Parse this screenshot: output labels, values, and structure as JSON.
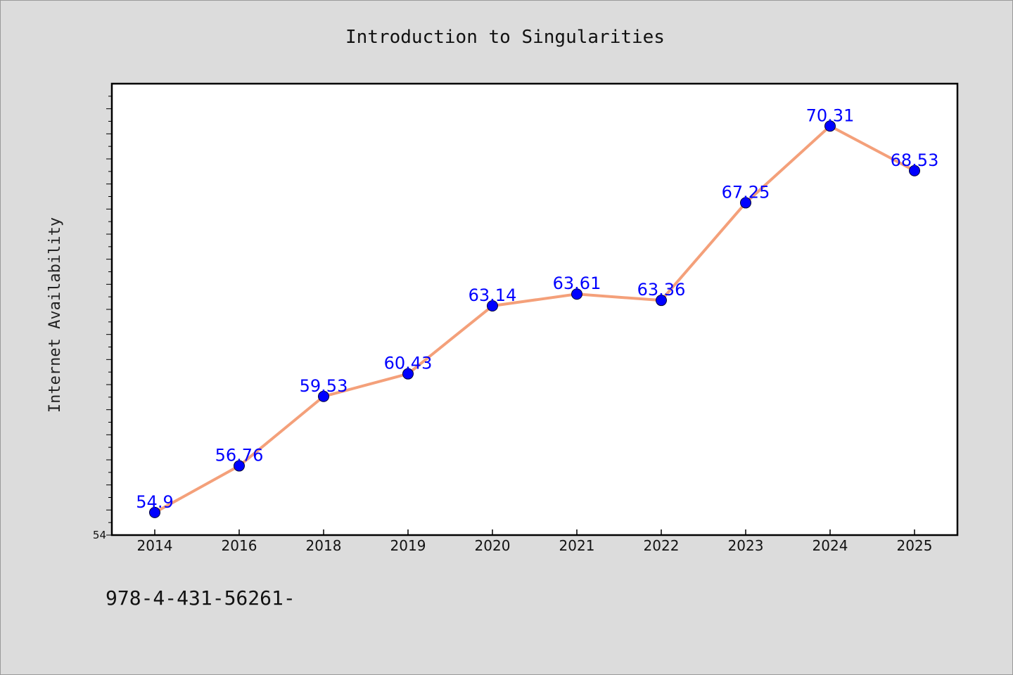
{
  "chart_data": {
    "type": "line",
    "title": "Introduction to Singularities",
    "xlabel": "",
    "ylabel": "Internet Availability",
    "categories": [
      "2014",
      "2016",
      "2018",
      "2019",
      "2020",
      "2021",
      "2022",
      "2023",
      "2024",
      "2025"
    ],
    "series": [
      {
        "values": [
          54.9,
          56.76,
          59.53,
          60.43,
          63.14,
          63.61,
          63.36,
          67.25,
          70.31,
          68.53
        ],
        "labels": [
          "54.9",
          "56.76",
          "59.53",
          "60.43",
          "63.14",
          "63.61",
          "63.36",
          "67.25",
          "70.31",
          "68.53"
        ],
        "line_color": "#f4a07a",
        "marker_color": "#0000ff"
      }
    ],
    "ylim": [
      54,
      72
    ],
    "yticks_labeled": [
      "54"
    ],
    "ytick_step": 1,
    "grid": false,
    "legend": "none"
  },
  "footnote": "978-4-431-56261-"
}
